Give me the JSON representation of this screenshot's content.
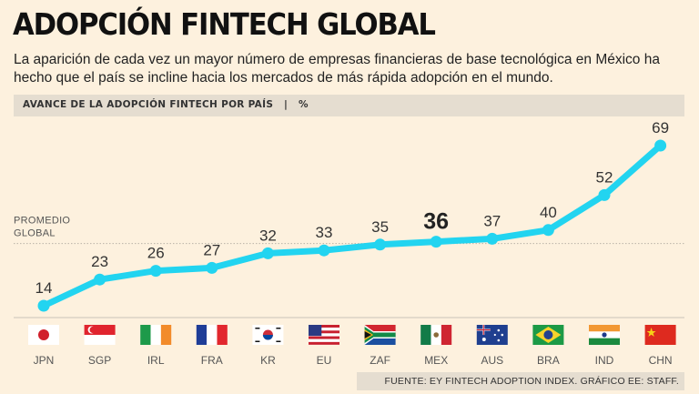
{
  "title": "ADOPCIÓN FINTECH GLOBAL",
  "subtitle": "La aparición de cada vez un mayor número de empresas financieras de base tecnológica en México ha hecho que el país se incline hacia los mercados de más rápida adopción en el mundo.",
  "section_header": "AVANCE DE LA ADOPCIÓN FINTECH POR PAÍS   |   %",
  "source": "FUENTE: EY FINTECH ADOPTION INDEX. GRÁFICO EE: STAFF.",
  "colors": {
    "line": "#22d4f0",
    "background": "#fdf1de",
    "header_bar": "#e5ddd0"
  },
  "chart_data": {
    "type": "line",
    "categories": [
      "JPN",
      "SGP",
      "IRL",
      "FRA",
      "KR",
      "EU",
      "ZAF",
      "MEX",
      "AUS",
      "BRA",
      "IND",
      "CHN"
    ],
    "values": [
      14,
      23,
      26,
      27,
      32,
      33,
      35,
      36,
      37,
      40,
      52,
      69
    ],
    "highlight": "MEX",
    "ylim": [
      10,
      72
    ],
    "reference_line": {
      "label_line1": "PROMEDIO",
      "label_line2": "GLOBAL",
      "value": 36
    },
    "grid": false,
    "flags": [
      "japan-flag-icon",
      "singapore-flag-icon",
      "ireland-flag-icon",
      "france-flag-icon",
      "south-korea-flag-icon",
      "usa-flag-icon",
      "south-africa-flag-icon",
      "mexico-flag-icon",
      "australia-flag-icon",
      "brazil-flag-icon",
      "india-flag-icon",
      "china-flag-icon"
    ]
  }
}
